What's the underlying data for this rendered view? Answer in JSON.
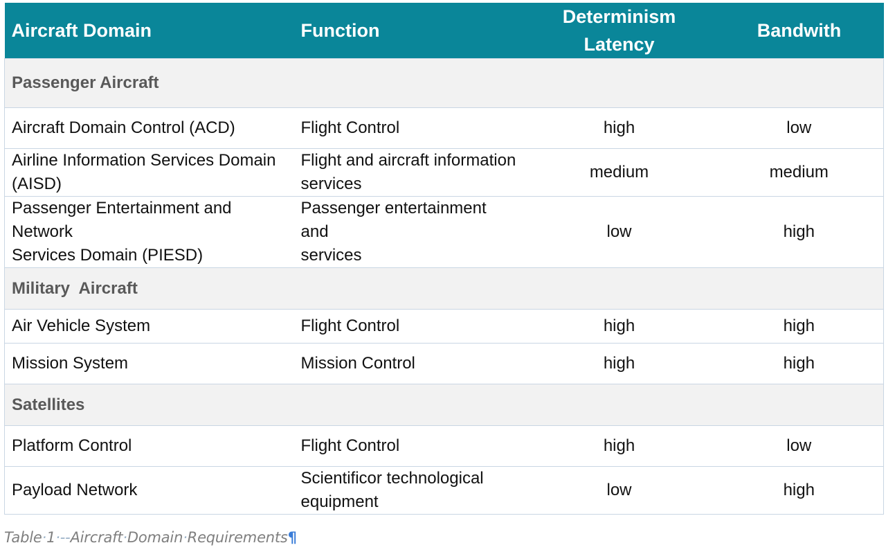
{
  "header": {
    "col1": "Aircraft Domain",
    "col2": "Function",
    "col3_line1": "Determinism",
    "col3_line2": "Latency",
    "col4": "Bandwith"
  },
  "sections": [
    {
      "title": "Passenger Aircraft",
      "rows": [
        {
          "domain_line1": "Aircraft Domain Control (ACD)",
          "domain_line2": "",
          "function_line1": "Flight Control",
          "function_line2": "",
          "determinism": "high",
          "bandwidth": "low"
        },
        {
          "domain_line1": "Airline Information Services Domain",
          "domain_line2": "(AISD)",
          "function_line1": "Flight and aircraft information",
          "function_line2": "services",
          "determinism": "medium",
          "bandwidth": "medium"
        },
        {
          "domain_line1": "Passenger Entertainment and Network",
          "domain_line2": "Services Domain (PIESD)",
          "function_line1": "Passenger entertainment and",
          "function_line2": "services",
          "determinism": "low",
          "bandwidth": "high"
        }
      ]
    },
    {
      "title": "Military  Aircraft",
      "rows": [
        {
          "domain_line1": "Air Vehicle System",
          "domain_line2": "",
          "function_line1": "Flight Control",
          "function_line2": "",
          "determinism": "high",
          "bandwidth": "high"
        },
        {
          "domain_line1": "Mission System",
          "domain_line2": "",
          "function_line1": "Mission Control",
          "function_line2": "",
          "determinism": "high",
          "bandwidth": "high"
        }
      ]
    },
    {
      "title": "Satellites",
      "rows": [
        {
          "domain_line1": "Platform Control",
          "domain_line2": "",
          "function_line1": "Flight Control",
          "function_line2": "",
          "determinism": "high",
          "bandwidth": "low"
        },
        {
          "domain_line1": "Payload Network",
          "domain_line2": "",
          "function_line1": "Scientificor technological",
          "function_line2": "equipment",
          "determinism": "low",
          "bandwidth": "high"
        }
      ]
    }
  ],
  "caption": {
    "word1": "Table",
    "number": "1",
    "separator": "--",
    "word2": "Aircraft",
    "word3": "Domain",
    "word4": "Requirements",
    "pilcrow": "¶"
  },
  "colors": {
    "header_bg": "#0A8699",
    "section_bg": "#F2F2F2",
    "border": "#C9D6E3"
  }
}
